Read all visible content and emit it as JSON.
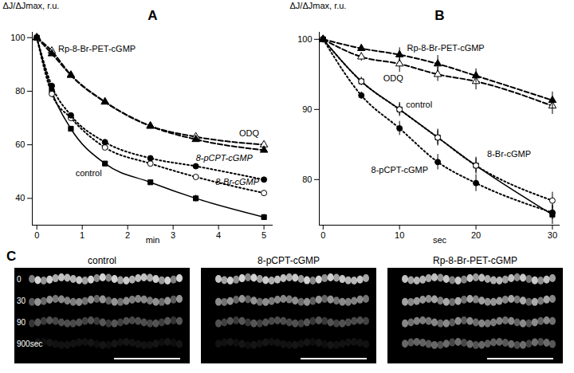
{
  "chart_data": [
    {
      "type": "line",
      "title": "A",
      "x_label": "min",
      "y_label": "ΔJ/ΔJmax, r.u.",
      "x": [
        0,
        0.33,
        0.75,
        1.5,
        2.5,
        3.5,
        5
      ],
      "xlim": [
        -0.1,
        5.2
      ],
      "xticks": [
        0,
        1,
        2,
        3,
        4,
        5
      ],
      "ylim": [
        30,
        102
      ],
      "yticks": [
        40,
        60,
        80,
        100
      ],
      "grid": false,
      "series": [
        {
          "name": "control",
          "color": "#000000",
          "marker": "square",
          "line_style": "solid",
          "values": [
            100,
            80,
            66,
            53,
            46,
            40,
            33
          ],
          "errors": [
            0,
            0.5,
            0.5,
            0.6,
            0.8,
            1.2,
            1.0
          ]
        },
        {
          "name": "8-Br-cGMP",
          "color": "#000000",
          "marker": "open circle",
          "line_style": "dotted",
          "values": [
            100,
            79,
            70,
            59,
            53,
            48,
            42
          ],
          "errors": [
            0,
            0.5,
            0.6,
            0.6,
            0.7,
            0.8,
            0.9
          ]
        },
        {
          "name": "8-pCPT-cGMP",
          "color": "#000000",
          "marker": "circle",
          "line_style": "dotted",
          "values": [
            100,
            82,
            71,
            61,
            55,
            52,
            47
          ],
          "errors": [
            0,
            0.5,
            0.6,
            0.6,
            0.7,
            0.7,
            0.8
          ]
        },
        {
          "name": "ODQ",
          "color": "#000000",
          "marker": "open triangle",
          "line_style": "dashed",
          "values": [
            100,
            95,
            86,
            76,
            67,
            63,
            60
          ],
          "errors": [
            0,
            0.4,
            0.5,
            0.6,
            0.6,
            0.7,
            0.7
          ]
        },
        {
          "name": "Rp-8-Br-PET-cGMP",
          "color": "#000000",
          "marker": "triangle",
          "line_style": "dashed",
          "values": [
            100,
            94,
            86,
            76,
            67,
            62,
            58
          ],
          "errors": [
            0,
            0.4,
            0.5,
            0.6,
            0.6,
            0.7,
            0.7
          ]
        }
      ]
    },
    {
      "type": "line",
      "title": "B",
      "x_label": "sec",
      "y_label": "ΔJ/ΔJmax, r.u.",
      "x": [
        0,
        5,
        10,
        15,
        20,
        30
      ],
      "xlim": [
        -0.5,
        31
      ],
      "xticks": [
        0,
        10,
        20,
        30
      ],
      "ylim": [
        73.5,
        101
      ],
      "yticks": [
        80,
        90,
        100
      ],
      "grid": false,
      "series": [
        {
          "name": "control",
          "color": "#000000",
          "marker": "square",
          "line_style": "solid",
          "values": [
            100,
            94,
            90,
            86,
            82,
            75
          ],
          "errors": [
            0,
            0.6,
            1.0,
            1.2,
            1.2,
            1.4
          ]
        },
        {
          "name": "8-Br-cGMP",
          "color": "#000000",
          "marker": "open circle",
          "line_style": "dotted",
          "values": [
            100,
            94,
            90,
            86,
            82,
            77
          ],
          "errors": [
            0,
            0.5,
            0.8,
            1.0,
            1.0,
            1.2
          ]
        },
        {
          "name": "8-pCPT-cGMP",
          "color": "#000000",
          "marker": "circle",
          "line_style": "dotted",
          "values": [
            100,
            92,
            87.3,
            82.5,
            79.5,
            75.3
          ],
          "errors": [
            0,
            0.5,
            1.0,
            1.1,
            1.2,
            1.0
          ]
        },
        {
          "name": "ODQ",
          "color": "#000000",
          "marker": "open triangle",
          "line_style": "dashed",
          "values": [
            100,
            97.5,
            96.5,
            95,
            94,
            90.5
          ],
          "errors": [
            0,
            0.6,
            1.2,
            1.0,
            1.2,
            1.2
          ]
        },
        {
          "name": "Rp-8-Br-PET-cGMP",
          "color": "#000000",
          "marker": "triangle",
          "line_style": "dashed",
          "values": [
            100,
            98.7,
            97.8,
            96.5,
            94.8,
            91.3
          ],
          "errors": [
            0,
            0.4,
            1.0,
            1.2,
            1.0,
            1.2
          ]
        }
      ]
    }
  ],
  "panel_c": {
    "label": "C",
    "titles": [
      "control",
      "8-pCPT-cGMP",
      "Rp-8-Br-PET-cGMP"
    ],
    "time_labels": [
      "0",
      "30",
      "90",
      "900sec"
    ]
  }
}
